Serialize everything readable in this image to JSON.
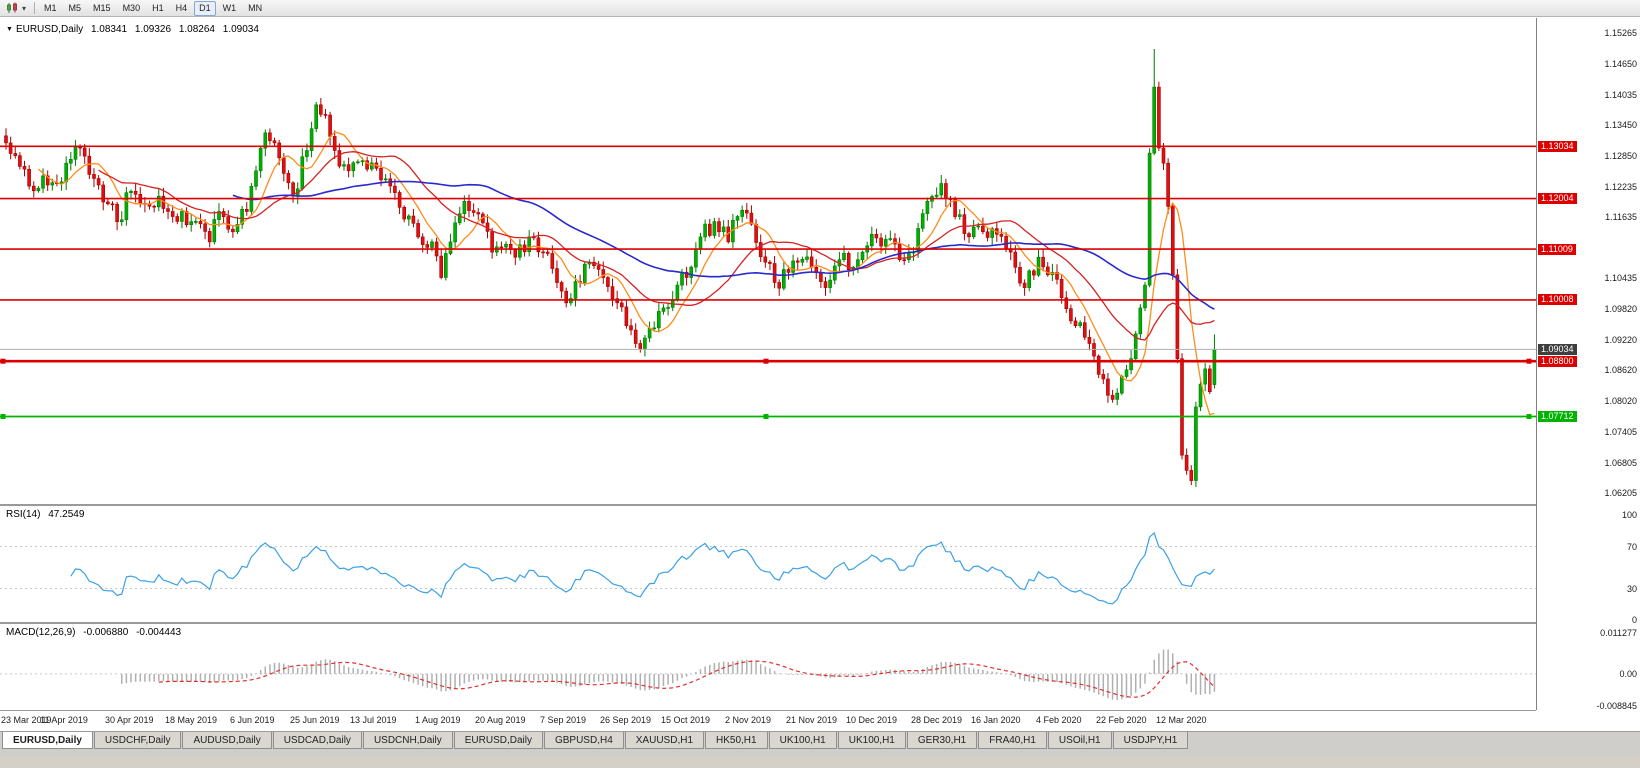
{
  "toolbar": {
    "timeframes": [
      "M1",
      "M5",
      "M15",
      "M30",
      "H1",
      "H4",
      "D1",
      "W1",
      "MN"
    ],
    "active_timeframe": "D1",
    "icons": [
      "chart-type-icon",
      "dropdown-caret-icon"
    ]
  },
  "chart_header": {
    "title": "EURUSD,Daily",
    "open": "1.08341",
    "high": "1.09326",
    "low": "1.08264",
    "close": "1.09034"
  },
  "chart_data": {
    "type": "candlestick",
    "symbol": "EURUSD",
    "timeframe": "Daily",
    "num_candles": 262,
    "candle_spacing_px": 4.63,
    "price_range": {
      "min": 1.06205,
      "max": 1.15265
    },
    "price_axis_labels": [
      "1.15265",
      "1.14650",
      "1.14035",
      "1.13450",
      "1.12850",
      "1.12235",
      "1.11635",
      "1.10435",
      "1.09820",
      "1.09220",
      "1.08620",
      "1.08020",
      "1.07405",
      "1.06805",
      "1.06205"
    ],
    "x_labels": [
      "23 Mar 2019",
      "11 Apr 2019",
      "30 Apr 2019",
      "18 May 2019",
      "6 Jun 2019",
      "25 Jun 2019",
      "13 Jul 2019",
      "1 Aug 2019",
      "20 Aug 2019",
      "7 Sep 2019",
      "26 Sep 2019",
      "15 Oct 2019",
      "2 Nov 2019",
      "21 Nov 2019",
      "10 Dec 2019",
      "28 Dec 2019",
      "16 Jan 2020",
      "4 Feb 2020",
      "22 Feb 2020",
      "12 Mar 2020"
    ],
    "x_label_indices": [
      0,
      13,
      27,
      40,
      54,
      67,
      80,
      94,
      107,
      121,
      134,
      147,
      161,
      174,
      187,
      201,
      214,
      228,
      241,
      254
    ],
    "close_anchors": [
      [
        0,
        1.131
      ],
      [
        2,
        1.1285
      ],
      [
        5,
        1.1225
      ],
      [
        8,
        1.1245
      ],
      [
        11,
        1.123
      ],
      [
        13,
        1.127
      ],
      [
        16,
        1.13
      ],
      [
        19,
        1.124
      ],
      [
        22,
        1.119
      ],
      [
        24,
        1.1155
      ],
      [
        27,
        1.1215
      ],
      [
        30,
        1.119
      ],
      [
        33,
        1.1205
      ],
      [
        36,
        1.1165
      ],
      [
        38,
        1.1175
      ],
      [
        40,
        1.1155
      ],
      [
        44,
        1.1115
      ],
      [
        46,
        1.1175
      ],
      [
        49,
        1.1135
      ],
      [
        52,
        1.1175
      ],
      [
        54,
        1.1255
      ],
      [
        56,
        1.133
      ],
      [
        58,
        1.131
      ],
      [
        60,
        1.125
      ],
      [
        62,
        1.1205
      ],
      [
        65,
        1.1295
      ],
      [
        67,
        1.1385
      ],
      [
        69,
        1.1365
      ],
      [
        71,
        1.1295
      ],
      [
        74,
        1.1255
      ],
      [
        77,
        1.1275
      ],
      [
        80,
        1.126
      ],
      [
        83,
        1.1225
      ],
      [
        86,
        1.116
      ],
      [
        89,
        1.1125
      ],
      [
        92,
        1.1115
      ],
      [
        94,
        1.1045
      ],
      [
        96,
        1.1115
      ],
      [
        99,
        1.1195
      ],
      [
        102,
        1.117
      ],
      [
        105,
        1.1095
      ],
      [
        107,
        1.1105
      ],
      [
        110,
        1.1085
      ],
      [
        113,
        1.1125
      ],
      [
        116,
        1.1095
      ],
      [
        119,
        1.1035
      ],
      [
        121,
        1.0995
      ],
      [
        124,
        1.1035
      ],
      [
        126,
        1.1075
      ],
      [
        129,
        1.1045
      ],
      [
        132,
        1.0995
      ],
      [
        134,
        1.095
      ],
      [
        137,
        1.0905
      ],
      [
        139,
        1.0945
      ],
      [
        142,
        1.0985
      ],
      [
        145,
        1.103
      ],
      [
        147,
        1.1045
      ],
      [
        150,
        1.1125
      ],
      [
        153,
        1.1155
      ],
      [
        156,
        1.1115
      ],
      [
        158,
        1.1165
      ],
      [
        161,
        1.115
      ],
      [
        164,
        1.1075
      ],
      [
        166,
        1.1035
      ],
      [
        169,
        1.1055
      ],
      [
        171,
        1.1075
      ],
      [
        174,
        1.1065
      ],
      [
        177,
        1.1025
      ],
      [
        180,
        1.108
      ],
      [
        183,
        1.1065
      ],
      [
        185,
        1.1095
      ],
      [
        187,
        1.113
      ],
      [
        190,
        1.112
      ],
      [
        193,
        1.108
      ],
      [
        196,
        1.1095
      ],
      [
        199,
        1.1195
      ],
      [
        202,
        1.123
      ],
      [
        205,
        1.1165
      ],
      [
        208,
        1.1125
      ],
      [
        211,
        1.1135
      ],
      [
        214,
        1.113
      ],
      [
        217,
        1.1095
      ],
      [
        220,
        1.1025
      ],
      [
        223,
        1.1085
      ],
      [
        226,
        1.1055
      ],
      [
        228,
        1.1005
      ],
      [
        231,
        1.095
      ],
      [
        234,
        1.0915
      ],
      [
        237,
        1.0845
      ],
      [
        239,
        1.0805
      ],
      [
        241,
        1.085
      ],
      [
        243,
        1.0885
      ],
      [
        245,
        1.0985
      ],
      [
        246,
        1.103
      ],
      [
        247,
        1.129
      ],
      [
        248,
        1.142
      ],
      [
        249,
        1.13
      ],
      [
        250,
        1.127
      ],
      [
        251,
        1.1185
      ],
      [
        252,
        1.105
      ],
      [
        253,
        1.0885
      ],
      [
        254,
        1.0695
      ],
      [
        255,
        1.0665
      ],
      [
        256,
        1.0645
      ],
      [
        257,
        1.079
      ],
      [
        258,
        1.0835
      ],
      [
        259,
        1.0865
      ],
      [
        260,
        1.082
      ],
      [
        261,
        1.0903
      ]
    ],
    "candle_overrides": {
      "248": {
        "high": 1.1495
      },
      "256": {
        "low": 1.0636
      },
      "261": {
        "open": 1.08341,
        "high": 1.09326,
        "low": 1.08264,
        "close": 1.09034
      }
    },
    "up_color": "#00b000",
    "up_stroke": "#007a00",
    "down_color": "#e01010",
    "down_stroke": "#a80000",
    "moving_averages": [
      {
        "name": "fast-ma",
        "period": 8,
        "color": "#ff8c1a"
      },
      {
        "name": "mid-ma",
        "period": 21,
        "color": "#d62222"
      },
      {
        "name": "slow-ma",
        "period": 50,
        "color": "#2a2acc"
      }
    ],
    "horizontal_lines": [
      {
        "price": 1.13034,
        "label": "1.13034",
        "color": "#dd0000",
        "width": 1.6,
        "selected": false
      },
      {
        "price": 1.12004,
        "label": "1.12004",
        "color": "#dd0000",
        "width": 1.6,
        "selected": false
      },
      {
        "price": 1.11009,
        "label": "1.11009",
        "color": "#dd0000",
        "width": 1.6,
        "selected": false
      },
      {
        "price": 1.10008,
        "label": "1.10008",
        "color": "#dd0000",
        "width": 1.6,
        "selected": false
      },
      {
        "price": 1.088,
        "label": "1.08800",
        "color": "#dd0000",
        "width": 2.6,
        "selected": true
      },
      {
        "price": 1.07712,
        "label": "1.07712",
        "color": "#00b400",
        "width": 1.8,
        "selected": true
      }
    ],
    "current_price": {
      "value": 1.09034,
      "label": "1.09034",
      "line_color": "#b0b0b0",
      "badge_color": "#3f3f3f"
    },
    "indicators": [
      {
        "name": "RSI",
        "label": "RSI(14)",
        "value": "47.2549",
        "color": "#3aa0e8",
        "axis_labels": [
          "100",
          "70",
          "30",
          "0"
        ],
        "levels": [
          70,
          30
        ],
        "range": {
          "min": 0,
          "max": 100
        }
      },
      {
        "name": "MACD",
        "label": "MACD(12,26,9)",
        "values": [
          "-0.006880",
          "-0.004443"
        ],
        "histogram_color": "#b0b0b0",
        "signal_color": "#e03030",
        "axis_labels": [
          "0.011277",
          "0.00",
          "-0.008845"
        ],
        "range": {
          "min": -0.008845,
          "max": 0.011277
        }
      }
    ]
  },
  "tabs": [
    "EURUSD,Daily",
    "USDCHF,Daily",
    "AUDUSD,Daily",
    "USDCAD,Daily",
    "USDCNH,Daily",
    "EURUSD,Daily",
    "GBPUSD,H4",
    "XAUUSD,H1",
    "HK50,H1",
    "UK100,H1",
    "UK100,H1",
    "GER30,H1",
    "FRA40,H1",
    "USOil,H1",
    "USDJPY,H1"
  ],
  "active_tab_index": 0
}
